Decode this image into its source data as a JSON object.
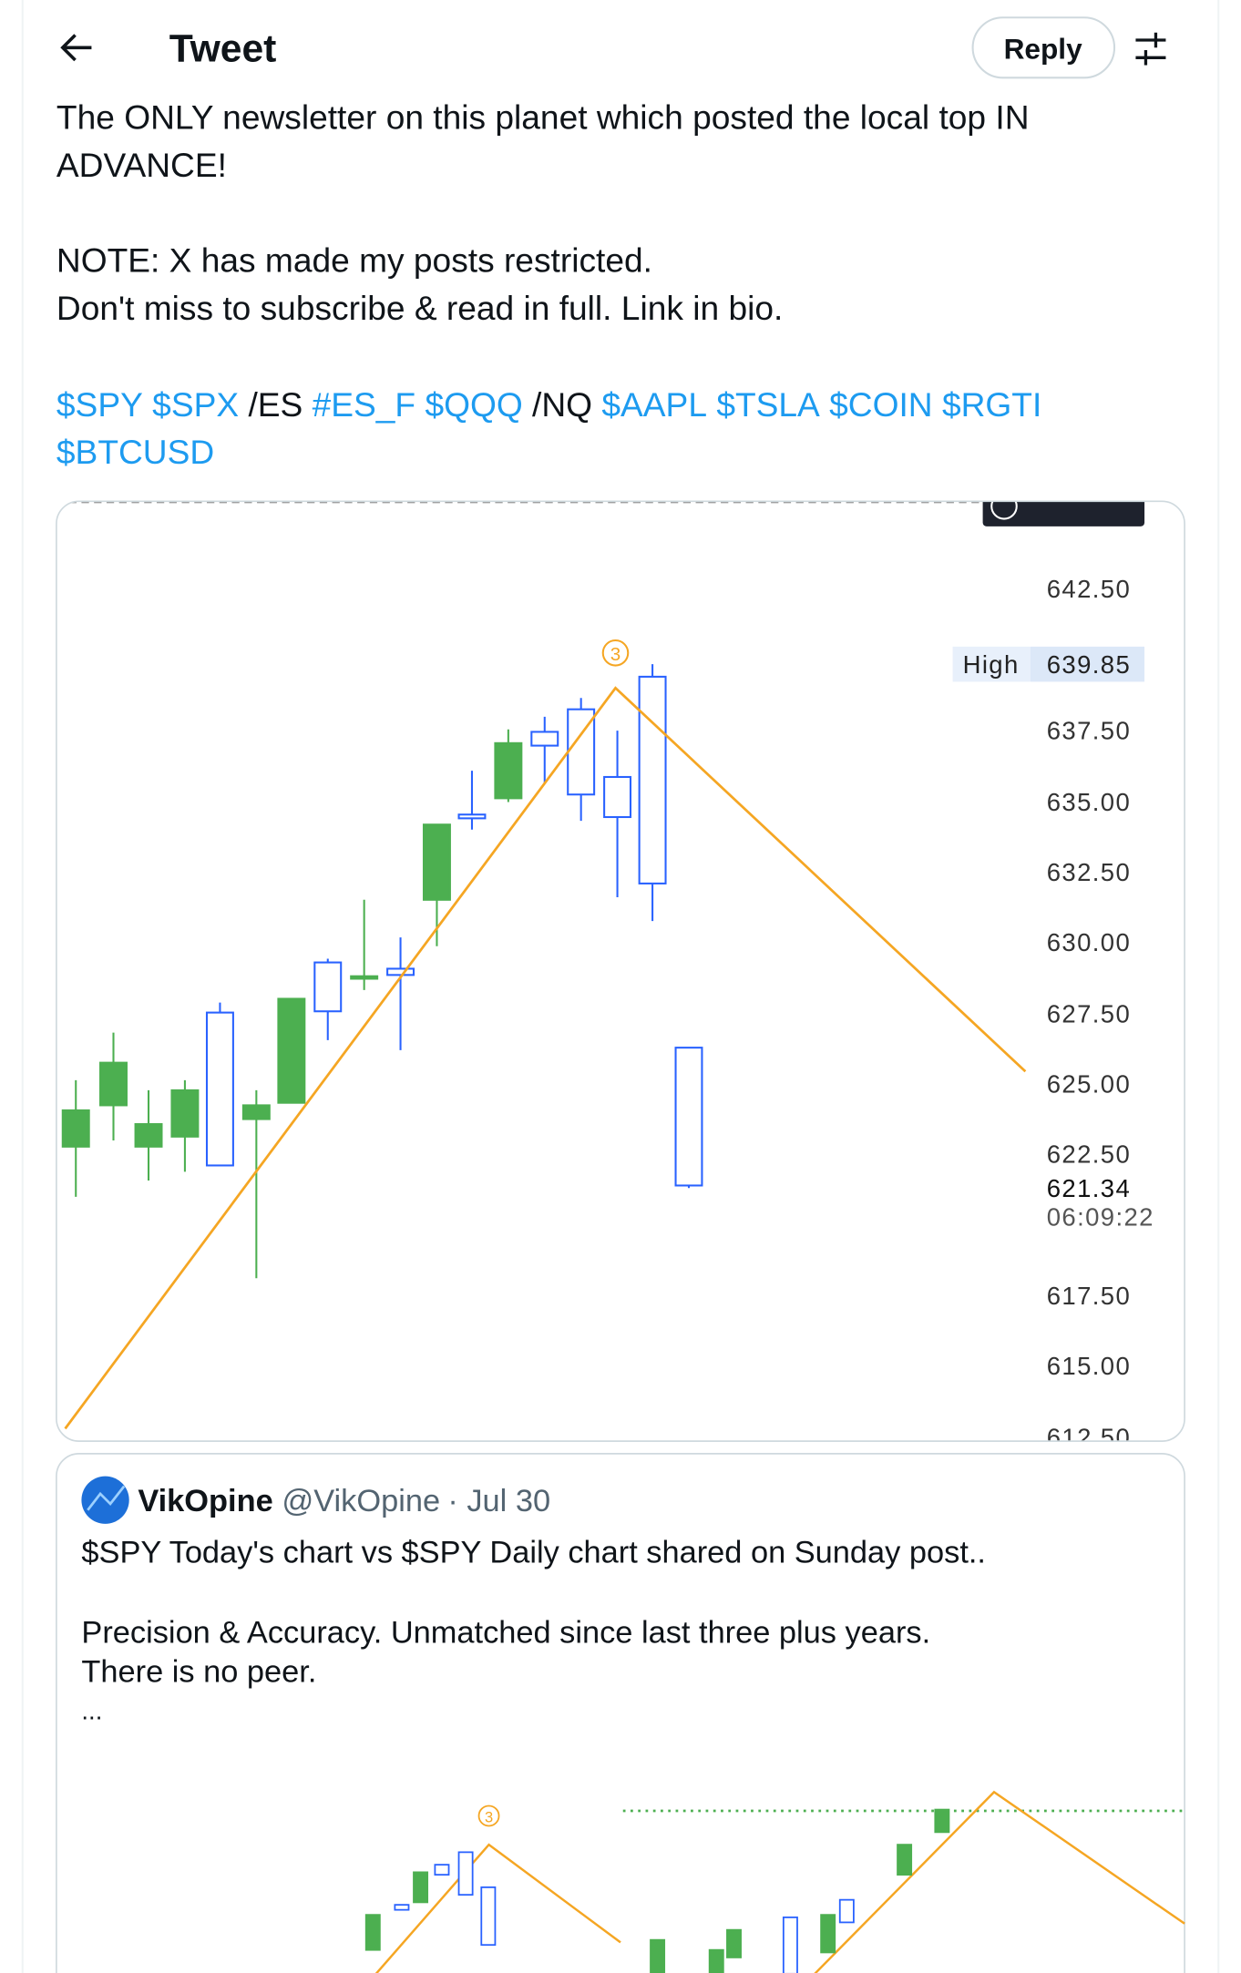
{
  "header": {
    "title": "Tweet",
    "reply_button": "Reply"
  },
  "tweet": {
    "text_lines": [
      "The ONLY newsletter on this planet which posted the local top IN",
      "ADVANCE!",
      "NOTE: X has made my posts restricted.",
      "Don't miss to subscribe & read in full. Link in bio."
    ],
    "tags_line1": [
      {
        "text": "$SPY",
        "link": true
      },
      {
        "text": "$SPX",
        "link": true
      },
      {
        "text": "/ES",
        "link": false
      },
      {
        "text": "#ES_F",
        "link": true
      },
      {
        "text": "$QQQ",
        "link": true
      },
      {
        "text": "/NQ",
        "link": false
      },
      {
        "text": "$AAPL",
        "link": true
      },
      {
        "text": "$TSLA",
        "link": true
      },
      {
        "text": "$COIN",
        "link": true
      },
      {
        "text": "$RGTI",
        "link": true
      }
    ],
    "tags_line2": [
      {
        "text": "$BTCUSD",
        "link": true
      }
    ]
  },
  "chart": {
    "price_labels": [
      "642.50",
      "637.50",
      "635.00",
      "632.50",
      "630.00",
      "627.50",
      "625.00",
      "622.50",
      "617.50",
      "615.00",
      "612.50"
    ],
    "high_label": "High",
    "high_value": "639.85",
    "current_price": "621.34",
    "countdown": "06:09:22",
    "marker": "3"
  },
  "quoted": {
    "name": "VikOpine",
    "handle": "@VikOpine",
    "date": "· Jul 30",
    "lines": [
      "$SPY Today's chart vs $SPY Daily chart shared on Sunday post..",
      "Precision & Accuracy. Unmatched since last three plus years.",
      "There is no peer.",
      "..."
    ],
    "marker": "3"
  }
}
